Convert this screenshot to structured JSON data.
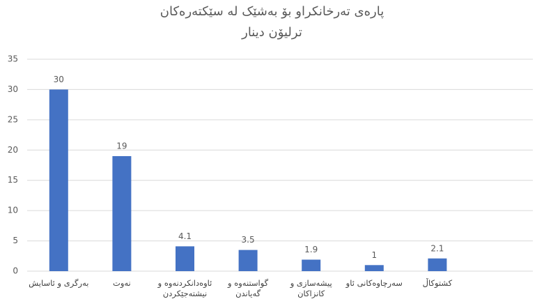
{
  "chart_data": {
    "type": "bar",
    "title": "پارەی تەرخانکراو بۆ بەشێک لە سێکتەرەکان",
    "subtitle": "ترلیۆن دینار",
    "categories": [
      "بەرگری و ئاسایش",
      "نەوت",
      "ئاوەدانکردنەوە و نیشتەجێکردن",
      "گواستنەوە و گەیاندن",
      "پیشەسازی و کانزاکان",
      "سەرچاوەکانی ئاو",
      "کشتوکاڵ"
    ],
    "values": [
      30,
      19,
      4.1,
      3.5,
      1.9,
      1,
      2.1
    ],
    "color": "#4472c4",
    "ylim": [
      0,
      35
    ],
    "yticks": [
      0,
      5,
      10,
      15,
      20,
      25,
      30,
      35
    ],
    "grid": true
  }
}
